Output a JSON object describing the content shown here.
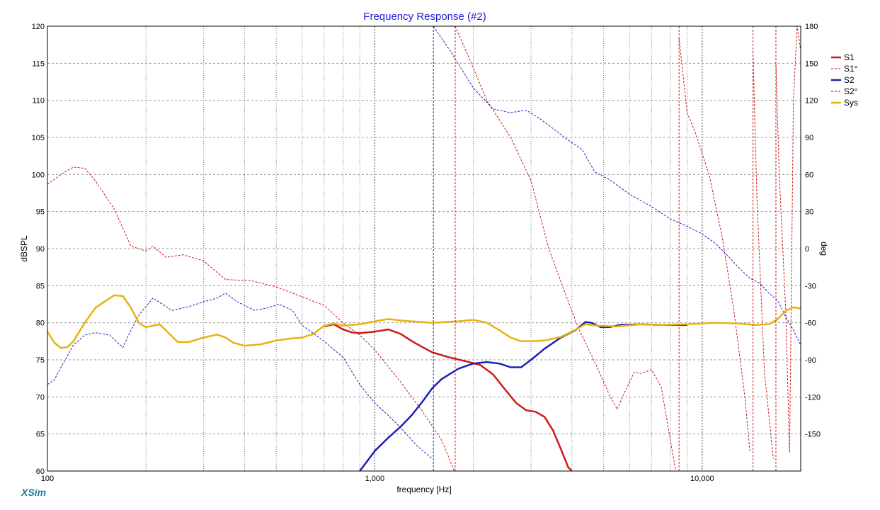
{
  "chart_data": {
    "type": "line",
    "title": "Frequency Response (#2)",
    "xlabel": "frequency [Hz]",
    "ylabel": "dBSPL",
    "y2label": "deg",
    "xscale": "log",
    "xlim": [
      100,
      20000
    ],
    "ylim": [
      60,
      120
    ],
    "y2lim": [
      -180,
      180
    ],
    "x_ticks": [
      100,
      1000,
      10000
    ],
    "x_tick_labels": [
      "100",
      "1,000",
      "10,000"
    ],
    "y_ticks": [
      60,
      65,
      70,
      75,
      80,
      85,
      90,
      95,
      100,
      105,
      110,
      115,
      120
    ],
    "y_tick_labels": [
      "60",
      "65",
      "70",
      "75",
      "80",
      "85",
      "90",
      "95",
      "100",
      "105",
      "110",
      "115",
      "120"
    ],
    "y2_ticks": [
      -150,
      -120,
      -90,
      -60,
      -30,
      0,
      30,
      60,
      90,
      120,
      150,
      180
    ],
    "y2_tick_labels": [
      "-150",
      "-120",
      "-90",
      "-60",
      "-30",
      "0",
      "30",
      "60",
      "90",
      "120",
      "150",
      "180"
    ],
    "grid": true,
    "legend_position": "right",
    "series": [
      {
        "name": "S1",
        "axis": "left",
        "color": "#cc1a1a",
        "dash": "solid",
        "width": 2.5,
        "points": [
          [
            700,
            79.5
          ],
          [
            750,
            79.8
          ],
          [
            800,
            79.1
          ],
          [
            850,
            78.7
          ],
          [
            900,
            78.6
          ],
          [
            1000,
            78.8
          ],
          [
            1100,
            79.1
          ],
          [
            1200,
            78.5
          ],
          [
            1300,
            77.5
          ],
          [
            1400,
            76.7
          ],
          [
            1500,
            76.0
          ],
          [
            1700,
            75.3
          ],
          [
            1900,
            74.8
          ],
          [
            2100,
            74.3
          ],
          [
            2300,
            73.0
          ],
          [
            2500,
            71.0
          ],
          [
            2700,
            69.2
          ],
          [
            2900,
            68.2
          ],
          [
            3100,
            68.0
          ],
          [
            3300,
            67.3
          ],
          [
            3500,
            65.5
          ],
          [
            3700,
            63.0
          ],
          [
            3900,
            60.5
          ],
          [
            4000,
            60.0
          ]
        ]
      },
      {
        "name": "S1°",
        "axis": "right",
        "color": "#cc1a1a",
        "dash": "dashed",
        "width": 1,
        "points": [
          [
            100,
            52
          ],
          [
            110,
            60
          ],
          [
            120,
            66
          ],
          [
            130,
            65
          ],
          [
            140,
            55
          ],
          [
            160,
            32
          ],
          [
            180,
            2
          ],
          [
            200,
            -2
          ],
          [
            210,
            2
          ],
          [
            230,
            -7
          ],
          [
            260,
            -5
          ],
          [
            300,
            -10
          ],
          [
            350,
            -25
          ],
          [
            420,
            -26
          ],
          [
            500,
            -31
          ],
          [
            600,
            -39
          ],
          [
            700,
            -46
          ],
          [
            800,
            -60
          ],
          [
            900,
            -70
          ],
          [
            1000,
            -82
          ],
          [
            1200,
            -108
          ],
          [
            1400,
            -132
          ],
          [
            1600,
            -155
          ],
          [
            1750,
            -180
          ],
          [
            1760,
            180
          ],
          [
            1900,
            160
          ],
          [
            2200,
            120
          ],
          [
            2600,
            90
          ],
          [
            3000,
            55
          ],
          [
            3400,
            0
          ],
          [
            3800,
            -35
          ],
          [
            4200,
            -65
          ],
          [
            4700,
            -92
          ],
          [
            5200,
            -118
          ],
          [
            5500,
            -130
          ],
          [
            5900,
            -112
          ],
          [
            6200,
            -100
          ],
          [
            6500,
            -101
          ],
          [
            7000,
            -98
          ],
          [
            7500,
            -112
          ],
          [
            8300,
            -180
          ],
          [
            8500,
            170
          ],
          [
            9000,
            110
          ],
          [
            9500,
            95
          ],
          [
            10500,
            60
          ],
          [
            11500,
            10
          ],
          [
            12500,
            -50
          ],
          [
            13500,
            -120
          ],
          [
            14000,
            -165
          ],
          [
            14300,
            160
          ],
          [
            14700,
            40
          ],
          [
            15500,
            -100
          ],
          [
            16500,
            -170
          ],
          [
            16800,
            150
          ],
          [
            17200,
            60
          ],
          [
            18000,
            -50
          ],
          [
            18500,
            -165
          ],
          [
            19000,
            120
          ],
          [
            19500,
            180
          ],
          [
            20000,
            160
          ]
        ]
      },
      {
        "name": "S2",
        "axis": "left",
        "color": "#1a22b4",
        "dash": "solid",
        "width": 2.5,
        "points": [
          [
            900,
            60.0
          ],
          [
            1000,
            62.7
          ],
          [
            1100,
            64.5
          ],
          [
            1200,
            66.0
          ],
          [
            1300,
            67.6
          ],
          [
            1400,
            69.4
          ],
          [
            1500,
            71.2
          ],
          [
            1600,
            72.4
          ],
          [
            1800,
            73.8
          ],
          [
            2000,
            74.5
          ],
          [
            2200,
            74.7
          ],
          [
            2400,
            74.5
          ],
          [
            2600,
            74.0
          ],
          [
            2800,
            74.0
          ],
          [
            3000,
            75.0
          ],
          [
            3300,
            76.5
          ],
          [
            3700,
            78.0
          ],
          [
            4100,
            79.0
          ],
          [
            4400,
            80.1
          ],
          [
            4600,
            80.0
          ],
          [
            4900,
            79.4
          ],
          [
            5200,
            79.4
          ],
          [
            5600,
            79.7
          ],
          [
            6500,
            79.8
          ],
          [
            7500,
            79.7
          ],
          [
            9000,
            79.7
          ]
        ]
      },
      {
        "name": "S2°",
        "axis": "right",
        "color": "#1a22b4",
        "dash": "dashed",
        "width": 1,
        "points": [
          [
            100,
            -110
          ],
          [
            105,
            -106
          ],
          [
            110,
            -96
          ],
          [
            120,
            -78
          ],
          [
            130,
            -70
          ],
          [
            140,
            -68
          ],
          [
            155,
            -70
          ],
          [
            170,
            -80
          ],
          [
            180,
            -66
          ],
          [
            190,
            -54
          ],
          [
            210,
            -40
          ],
          [
            240,
            -50
          ],
          [
            270,
            -47
          ],
          [
            300,
            -43
          ],
          [
            330,
            -40
          ],
          [
            350,
            -36
          ],
          [
            380,
            -43
          ],
          [
            430,
            -50
          ],
          [
            470,
            -48
          ],
          [
            510,
            -45
          ],
          [
            560,
            -50
          ],
          [
            600,
            -62
          ],
          [
            700,
            -75
          ],
          [
            800,
            -88
          ],
          [
            900,
            -110
          ],
          [
            1000,
            -125
          ],
          [
            1100,
            -135
          ],
          [
            1200,
            -145
          ],
          [
            1350,
            -160
          ],
          [
            1500,
            -170
          ],
          [
            1510,
            180
          ],
          [
            1700,
            160
          ],
          [
            2000,
            130
          ],
          [
            2300,
            113
          ],
          [
            2600,
            110
          ],
          [
            2900,
            112
          ],
          [
            3200,
            105
          ],
          [
            3800,
            90
          ],
          [
            4300,
            80
          ],
          [
            4700,
            62
          ],
          [
            5200,
            56
          ],
          [
            6000,
            44
          ],
          [
            7000,
            34
          ],
          [
            8000,
            24
          ],
          [
            9000,
            18
          ],
          [
            10000,
            12
          ],
          [
            11000,
            4
          ],
          [
            12000,
            -6
          ],
          [
            13000,
            -16
          ],
          [
            14000,
            -24
          ],
          [
            15000,
            -28
          ],
          [
            16000,
            -36
          ],
          [
            17000,
            -42
          ],
          [
            18000,
            -55
          ],
          [
            19000,
            -66
          ],
          [
            20000,
            -78
          ]
        ]
      },
      {
        "name": "Sys",
        "axis": "left",
        "color": "#e8b210",
        "dash": "solid",
        "width": 2.5,
        "points": [
          [
            100,
            78.8
          ],
          [
            105,
            77.3
          ],
          [
            110,
            76.6
          ],
          [
            115,
            76.7
          ],
          [
            120,
            77.5
          ],
          [
            130,
            80.0
          ],
          [
            140,
            82.0
          ],
          [
            150,
            82.9
          ],
          [
            160,
            83.7
          ],
          [
            170,
            83.6
          ],
          [
            180,
            82.0
          ],
          [
            190,
            80.0
          ],
          [
            200,
            79.4
          ],
          [
            210,
            79.6
          ],
          [
            220,
            79.8
          ],
          [
            230,
            79.0
          ],
          [
            250,
            77.4
          ],
          [
            270,
            77.4
          ],
          [
            300,
            78.0
          ],
          [
            330,
            78.4
          ],
          [
            350,
            78.0
          ],
          [
            370,
            77.3
          ],
          [
            400,
            76.9
          ],
          [
            450,
            77.1
          ],
          [
            500,
            77.6
          ],
          [
            560,
            77.9
          ],
          [
            600,
            78.0
          ],
          [
            650,
            78.5
          ],
          [
            700,
            79.6
          ],
          [
            750,
            79.9
          ],
          [
            800,
            79.6
          ],
          [
            900,
            79.8
          ],
          [
            1000,
            80.2
          ],
          [
            1100,
            80.5
          ],
          [
            1200,
            80.3
          ],
          [
            1500,
            80.0
          ],
          [
            1800,
            80.2
          ],
          [
            2000,
            80.4
          ],
          [
            2200,
            80.0
          ],
          [
            2400,
            79.0
          ],
          [
            2600,
            78.0
          ],
          [
            2800,
            77.5
          ],
          [
            3000,
            77.5
          ],
          [
            3300,
            77.6
          ],
          [
            3700,
            78.1
          ],
          [
            4000,
            78.8
          ],
          [
            4400,
            79.8
          ],
          [
            4800,
            79.6
          ],
          [
            5500,
            79.5
          ],
          [
            6500,
            79.8
          ],
          [
            7500,
            79.7
          ],
          [
            9000,
            79.8
          ],
          [
            11000,
            80.0
          ],
          [
            13000,
            79.9
          ],
          [
            14500,
            79.7
          ],
          [
            16000,
            79.8
          ],
          [
            17000,
            80.5
          ],
          [
            18000,
            81.6
          ],
          [
            19000,
            82.1
          ],
          [
            20000,
            81.9
          ]
        ]
      }
    ]
  },
  "footer": {
    "brand": "XSim"
  }
}
